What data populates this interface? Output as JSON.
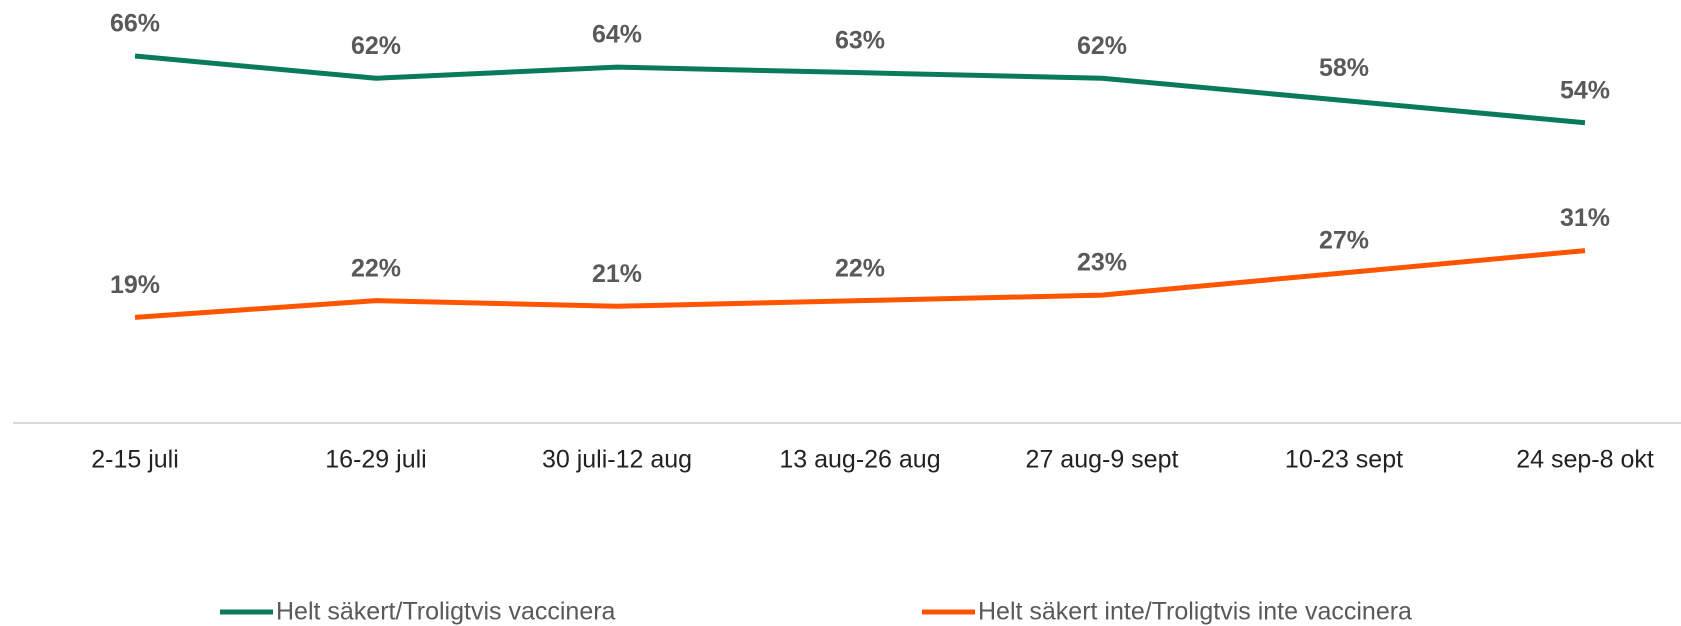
{
  "chart_data": {
    "type": "line",
    "categories": [
      "2-15 juli",
      "16-29 juli",
      "30 juli-12 aug",
      "13 aug-26 aug",
      "27 aug-9 sept",
      "10-23 sept",
      "24 sep-8 okt"
    ],
    "series": [
      {
        "name": "Helt säkert/Troligtvis vaccinera",
        "color": "#0a7a5c",
        "values": [
          66,
          62,
          64,
          63,
          62,
          58,
          54
        ],
        "value_labels": [
          "66%",
          "62%",
          "64%",
          "63%",
          "62%",
          "58%",
          "54%"
        ]
      },
      {
        "name": "Helt säkert inte/Troligtvis inte vaccinera",
        "color": "#ff5500",
        "values": [
          19,
          22,
          21,
          22,
          23,
          27,
          31
        ],
        "value_labels": [
          "19%",
          "22%",
          "21%",
          "22%",
          "23%",
          "27%",
          "31%"
        ]
      }
    ]
  }
}
